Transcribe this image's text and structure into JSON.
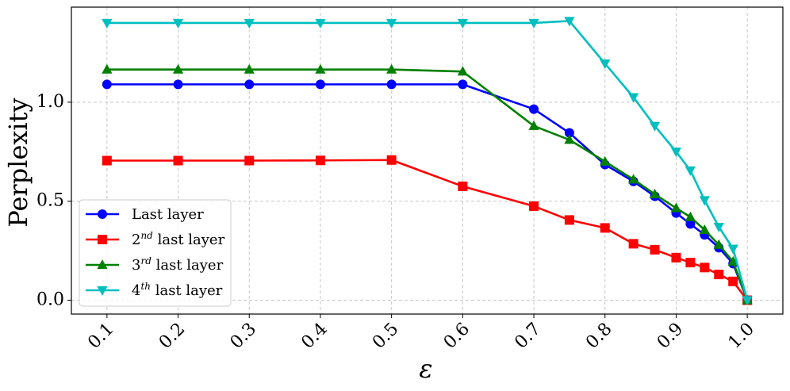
{
  "chart_data": {
    "type": "line",
    "xlabel": "ε",
    "ylabel": "Perplexity",
    "xlim": [
      0.05,
      1.05
    ],
    "ylim": [
      -0.07,
      1.48
    ],
    "xticks": [
      {
        "value": 0.1,
        "label": "0.1"
      },
      {
        "value": 0.2,
        "label": "0.2"
      },
      {
        "value": 0.3,
        "label": "0.3"
      },
      {
        "value": 0.4,
        "label": "0.4"
      },
      {
        "value": 0.5,
        "label": "0.5"
      },
      {
        "value": 0.6,
        "label": "0.6"
      },
      {
        "value": 0.7,
        "label": "0.7"
      },
      {
        "value": 0.8,
        "label": "0.8"
      },
      {
        "value": 0.9,
        "label": "0.9"
      },
      {
        "value": 1.0,
        "label": "1.0"
      }
    ],
    "yticks": [
      {
        "value": 0.0,
        "label": "0.0"
      },
      {
        "value": 0.5,
        "label": "0.5"
      },
      {
        "value": 1.0,
        "label": "1.0"
      }
    ],
    "grid": true,
    "legend_position": "lower-left",
    "series": [
      {
        "name": "Last layer",
        "name_base": "Last layer",
        "name_sup": "",
        "name_rest": "",
        "color": "#0000ff",
        "marker": "circle",
        "x": [
          0.1,
          0.2,
          0.3,
          0.4,
          0.5,
          0.6,
          0.7,
          0.75,
          0.8,
          0.84,
          0.87,
          0.9,
          0.92,
          0.94,
          0.96,
          0.98,
          1.0
        ],
        "y": [
          1.09,
          1.09,
          1.09,
          1.09,
          1.09,
          1.09,
          0.965,
          0.845,
          0.685,
          0.6,
          0.525,
          0.44,
          0.385,
          0.33,
          0.265,
          0.185,
          0.0
        ]
      },
      {
        "name": "2nd last layer",
        "name_base": "2",
        "name_sup": "nd",
        "name_rest": " last layer",
        "color": "#ff0000",
        "marker": "square",
        "x": [
          0.1,
          0.2,
          0.3,
          0.4,
          0.5,
          0.6,
          0.7,
          0.75,
          0.8,
          0.84,
          0.87,
          0.9,
          0.92,
          0.94,
          0.96,
          0.98,
          1.0
        ],
        "y": [
          0.705,
          0.705,
          0.705,
          0.706,
          0.708,
          0.575,
          0.475,
          0.405,
          0.365,
          0.285,
          0.255,
          0.215,
          0.19,
          0.165,
          0.13,
          0.095,
          0.0
        ]
      },
      {
        "name": "3rd last layer",
        "name_base": "3",
        "name_sup": "rd",
        "name_rest": " last layer",
        "color": "#008000",
        "marker": "triangle-up",
        "x": [
          0.1,
          0.2,
          0.3,
          0.4,
          0.5,
          0.6,
          0.7,
          0.75,
          0.8,
          0.84,
          0.87,
          0.9,
          0.92,
          0.94,
          0.96,
          0.98,
          1.0
        ],
        "y": [
          1.165,
          1.165,
          1.165,
          1.165,
          1.165,
          1.155,
          0.88,
          0.81,
          0.7,
          0.61,
          0.535,
          0.465,
          0.42,
          0.355,
          0.28,
          0.195,
          0.0
        ]
      },
      {
        "name": "4th last layer",
        "name_base": "4",
        "name_sup": "th",
        "name_rest": " last layer",
        "color": "#00bfbf",
        "marker": "triangle-down",
        "x": [
          0.1,
          0.2,
          0.3,
          0.4,
          0.5,
          0.6,
          0.7,
          0.75,
          0.8,
          0.84,
          0.87,
          0.9,
          0.92,
          0.94,
          0.96,
          0.98,
          1.0
        ],
        "y": [
          1.4,
          1.4,
          1.4,
          1.4,
          1.4,
          1.4,
          1.4,
          1.41,
          1.195,
          1.025,
          0.88,
          0.75,
          0.655,
          0.505,
          0.37,
          0.26,
          0.0
        ]
      }
    ]
  }
}
